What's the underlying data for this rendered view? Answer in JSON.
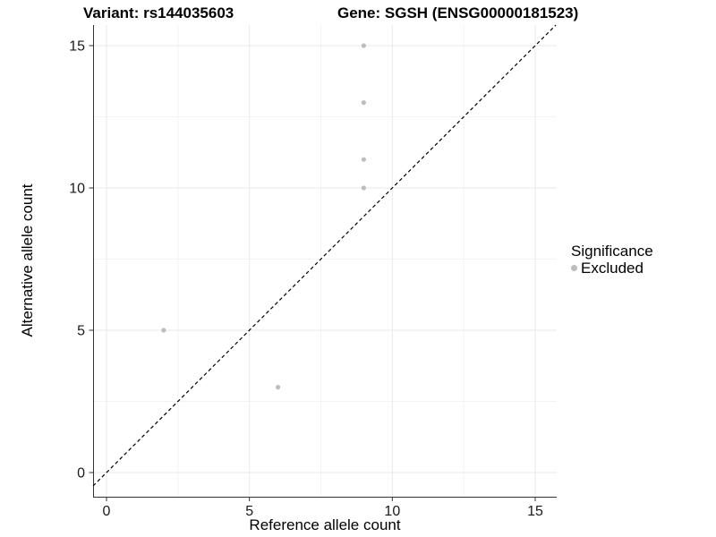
{
  "chart_data": {
    "type": "scatter",
    "title_left": "Variant: rs144035603",
    "title_right": "Gene: SGSH (ENSG00000181523)",
    "xlabel": "Reference allele count",
    "ylabel": "Alternative allele count",
    "x": [
      9,
      9,
      9,
      9,
      2,
      6
    ],
    "y": [
      15,
      13,
      11,
      10,
      5,
      3
    ],
    "xticks": [
      0,
      5,
      10,
      15
    ],
    "yticks": [
      0,
      5,
      10,
      15
    ],
    "minor_xticks": [
      2.5,
      7.5,
      12.5
    ],
    "minor_yticks": [
      2.5,
      7.5,
      12.5
    ],
    "xlim": [
      -0.47,
      15.75
    ],
    "ylim": [
      -0.85,
      15.72
    ],
    "grid": true,
    "reference_line": {
      "type": "identity",
      "style": "dashed",
      "color": "#000000"
    },
    "legend": {
      "title": "Significance",
      "position": "right",
      "items": [
        {
          "label": "Excluded",
          "color": "#bdbdbd"
        }
      ]
    },
    "point_color": "#bdbdbd",
    "colors": {
      "major_grid": "#e8e8e8",
      "minor_grid": "#f3f3f3",
      "axis": "#333333",
      "tick_label": "#1a1a1a"
    }
  }
}
